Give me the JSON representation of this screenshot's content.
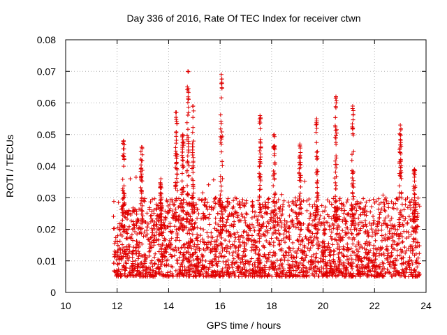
{
  "chart_data": {
    "type": "scatter",
    "title": "Day 336 of 2016, Rate Of TEC Index for receiver ctwn",
    "xlabel": "GPS time / hours",
    "ylabel": "ROTI / TECUs",
    "xlim": [
      10,
      24
    ],
    "ylim": [
      0,
      0.08
    ],
    "xticks": [
      10,
      12,
      14,
      16,
      18,
      20,
      22,
      24
    ],
    "yticks": [
      0,
      0.01,
      0.02,
      0.03,
      0.04,
      0.05,
      0.06,
      0.07,
      0.08
    ],
    "xtick_labels": [
      "10",
      "12",
      "14",
      "16",
      "18",
      "20",
      "22",
      "24"
    ],
    "ytick_labels": [
      "0",
      "0.01",
      "0.02",
      "0.03",
      "0.04",
      "0.05",
      "0.06",
      "0.07",
      "0.08"
    ],
    "grid": true,
    "marker": "+",
    "series": [
      {
        "name": "ROTI",
        "color": "#e00000",
        "x_range": [
          11.85,
          23.75
        ],
        "baseline_range": [
          0.005,
          0.03
        ],
        "peaks": [
          {
            "x": 12.25,
            "y": 0.048
          },
          {
            "x": 12.95,
            "y": 0.046
          },
          {
            "x": 13.7,
            "y": 0.036
          },
          {
            "x": 14.3,
            "y": 0.057
          },
          {
            "x": 14.55,
            "y": 0.05
          },
          {
            "x": 14.75,
            "y": 0.07
          },
          {
            "x": 14.95,
            "y": 0.059
          },
          {
            "x": 16.05,
            "y": 0.069
          },
          {
            "x": 17.55,
            "y": 0.056
          },
          {
            "x": 18.1,
            "y": 0.05
          },
          {
            "x": 19.1,
            "y": 0.047
          },
          {
            "x": 19.75,
            "y": 0.055
          },
          {
            "x": 20.5,
            "y": 0.062
          },
          {
            "x": 21.15,
            "y": 0.059
          },
          {
            "x": 23.0,
            "y": 0.053
          },
          {
            "x": 23.55,
            "y": 0.039
          }
        ]
      }
    ]
  }
}
